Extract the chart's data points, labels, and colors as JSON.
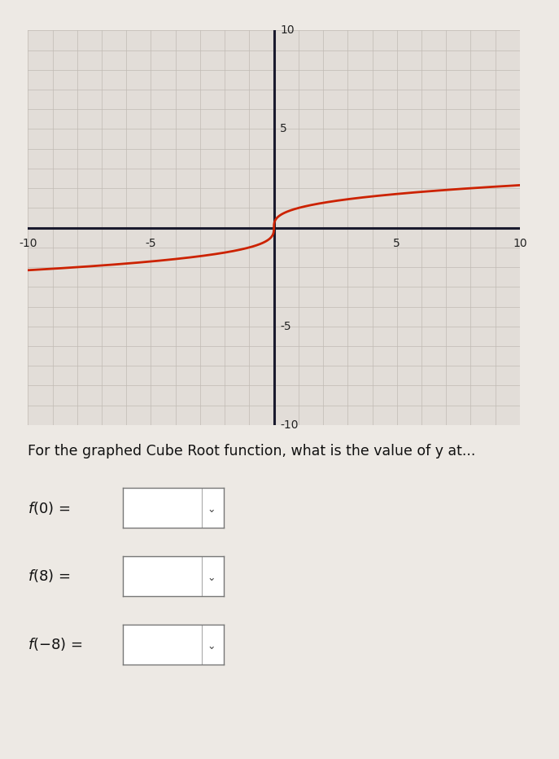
{
  "xlim": [
    -10,
    10
  ],
  "ylim": [
    -10,
    10
  ],
  "xticks": [
    -10,
    -5,
    0,
    5,
    10
  ],
  "yticks": [
    -10,
    -5,
    0,
    5,
    10
  ],
  "curve_color": "#cc2200",
  "curve_linewidth": 2.0,
  "grid_color": "#c0bab4",
  "grid_linewidth": 0.5,
  "axis_color": "#1a1a2e",
  "axis_linewidth": 2.2,
  "background_color": "#ede9e4",
  "plot_bg_color": "#e2ddd8",
  "title_text": "For the graphed Cube Root function, what is the value of y at...",
  "question_fontsize": 12.5,
  "label_fontsize": 13,
  "tick_label_fontsize": 10
}
